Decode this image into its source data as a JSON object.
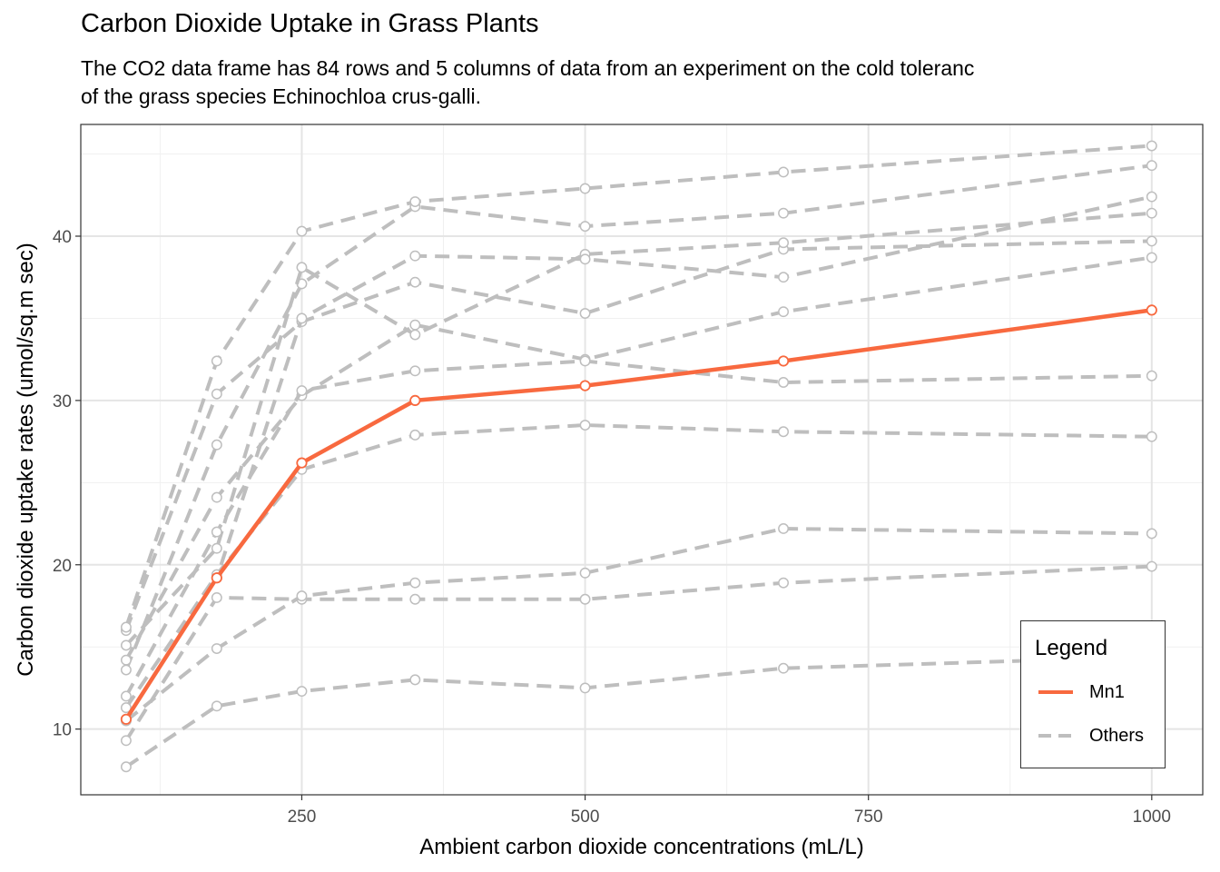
{
  "title": "Carbon Dioxide Uptake in Grass Plants",
  "subtitle_lines": [
    "The CO2 data frame has 84 rows and 5 columns of data from an experiment on the cold toleranc",
    "of the grass species Echinochloa crus-galli."
  ],
  "legend": {
    "title": "Legend",
    "items": [
      {
        "label": "Mn1",
        "color": "#F8693F",
        "style": "solid"
      },
      {
        "label": "Others",
        "color": "#BEBEBE",
        "style": "dashed"
      }
    ]
  },
  "chart_data": {
    "type": "line",
    "xlabel": "Ambient carbon dioxide concentrations (mL/L)",
    "ylabel": "Carbon dioxide uptake rates (umol/sq.m sec)",
    "xlim": [
      55,
      1045
    ],
    "ylim": [
      6,
      46.8
    ],
    "x_ticks": [
      250,
      500,
      750,
      1000
    ],
    "y_ticks": [
      10,
      20,
      30,
      40
    ],
    "grid": true,
    "legend_position": "bottom-right",
    "x": [
      95,
      175,
      250,
      350,
      500,
      675,
      1000
    ],
    "highlight_series": {
      "name": "Mn1",
      "color": "#F8693F",
      "values": [
        10.6,
        19.2,
        26.2,
        30.0,
        30.9,
        32.4,
        35.5
      ]
    },
    "other_series": {
      "name": "Others",
      "color": "#BEBEBE",
      "series": [
        {
          "values": [
            16.0,
            30.4,
            34.8,
            37.2,
            35.3,
            39.2,
            39.7
          ]
        },
        {
          "values": [
            13.6,
            27.3,
            37.1,
            41.8,
            40.6,
            41.4,
            44.3
          ]
        },
        {
          "values": [
            16.2,
            32.4,
            40.3,
            42.1,
            42.9,
            43.9,
            45.5
          ]
        },
        {
          "values": [
            14.2,
            24.1,
            30.3,
            34.6,
            32.5,
            35.4,
            38.7
          ]
        },
        {
          "values": [
            11.3,
            19.4,
            25.8,
            27.9,
            28.5,
            28.1,
            27.8
          ]
        },
        {
          "values": [
            15.1,
            21.0,
            38.1,
            34.0,
            38.9,
            39.6,
            41.4
          ]
        },
        {
          "values": [
            12.0,
            22.0,
            30.6,
            31.8,
            32.4,
            31.1,
            31.5
          ]
        },
        {
          "values": [
            9.3,
            18.0,
            17.9,
            17.9,
            17.9,
            18.9,
            19.9
          ]
        },
        {
          "values": [
            10.5,
            14.9,
            18.1,
            18.9,
            19.5,
            22.2,
            21.9
          ]
        },
        {
          "values": [
            7.7,
            11.4,
            12.3,
            13.0,
            12.5,
            13.7,
            14.4
          ]
        },
        {
          "values": [
            10.6,
            19.2,
            35.0,
            38.8,
            38.6,
            37.5,
            42.4
          ]
        }
      ]
    }
  }
}
